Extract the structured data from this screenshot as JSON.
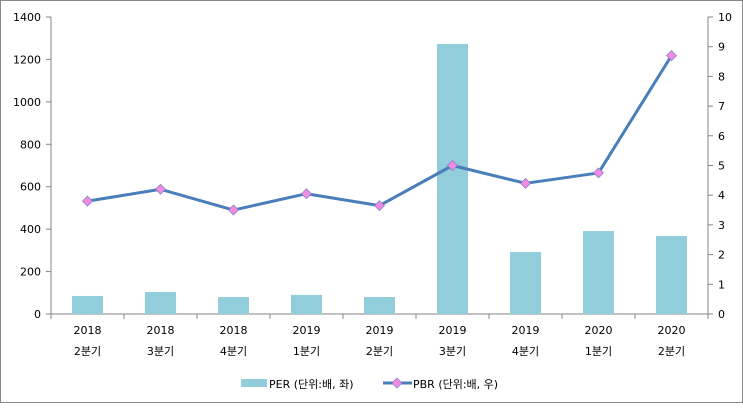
{
  "chart_data": {
    "type": "bar+line",
    "categories": [
      [
        "2018",
        "2분기"
      ],
      [
        "2018",
        "3분기"
      ],
      [
        "2018",
        "4분기"
      ],
      [
        "2019",
        "1분기"
      ],
      [
        "2019",
        "2분기"
      ],
      [
        "2019",
        "3분기"
      ],
      [
        "2019",
        "4분기"
      ],
      [
        "2020",
        "1분기"
      ],
      [
        "2020",
        "2분기"
      ]
    ],
    "series": [
      {
        "name": "PER (단위:배, 좌)",
        "type": "bar",
        "axis": "left",
        "color": "#92CDDC",
        "values": [
          85,
          104,
          80,
          90,
          80,
          1273,
          292,
          391,
          368
        ]
      },
      {
        "name": "PBR (단위:배, 우)",
        "type": "line",
        "axis": "right",
        "color": "#4A7EBB",
        "marker_color": "#F08CE0",
        "values": [
          3.8,
          4.2,
          3.5,
          4.05,
          3.65,
          5.0,
          4.4,
          4.75,
          8.7
        ]
      }
    ],
    "left_axis": {
      "ylim": [
        0,
        1400
      ],
      "ticks": [
        0,
        200,
        400,
        600,
        800,
        1000,
        1200,
        1400
      ]
    },
    "right_axis": {
      "ylim": [
        0,
        10
      ],
      "ticks": [
        0,
        1,
        2,
        3,
        4,
        5,
        6,
        7,
        8,
        9,
        10
      ]
    },
    "grid": false,
    "legend": "bottom"
  }
}
